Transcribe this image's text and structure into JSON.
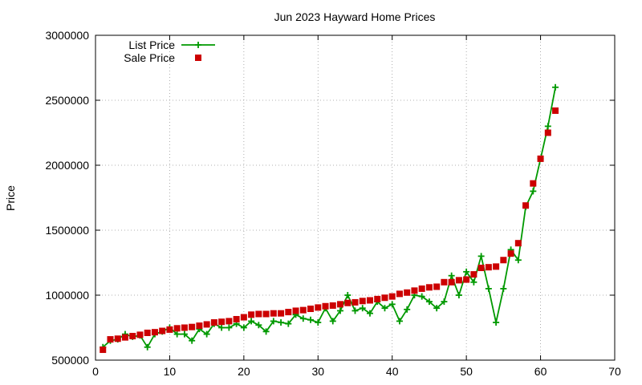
{
  "chart_data": {
    "type": "line",
    "title": "Jun 2023 Hayward Home Prices",
    "xlabel": "",
    "ylabel": "Price",
    "xlim": [
      0,
      70
    ],
    "ylim": [
      500000,
      3000000
    ],
    "x_ticks": [
      0,
      10,
      20,
      30,
      40,
      50,
      60,
      70
    ],
    "y_ticks": [
      500000,
      1000000,
      1500000,
      2000000,
      2500000,
      3000000
    ],
    "grid": true,
    "legend_position": "top-left",
    "series": [
      {
        "name": "List Price",
        "style": "line-plus",
        "color": "#009900",
        "x": [
          1,
          2,
          3,
          4,
          5,
          6,
          7,
          8,
          9,
          10,
          11,
          12,
          13,
          14,
          15,
          16,
          17,
          18,
          19,
          20,
          21,
          22,
          23,
          24,
          25,
          26,
          27,
          28,
          29,
          30,
          31,
          32,
          33,
          34,
          35,
          36,
          37,
          38,
          39,
          40,
          41,
          42,
          43,
          44,
          45,
          46,
          47,
          48,
          49,
          50,
          51,
          52,
          53,
          54,
          55,
          56,
          57,
          58,
          59,
          60,
          61,
          62
        ],
        "y": [
          600000,
          650000,
          660000,
          700000,
          680000,
          690000,
          600000,
          700000,
          720000,
          750000,
          700000,
          700000,
          650000,
          740000,
          700000,
          780000,
          750000,
          750000,
          780000,
          750000,
          800000,
          770000,
          720000,
          800000,
          790000,
          780000,
          850000,
          820000,
          810000,
          790000,
          900000,
          800000,
          880000,
          1000000,
          880000,
          900000,
          860000,
          950000,
          900000,
          930000,
          800000,
          890000,
          1000000,
          990000,
          950000,
          900000,
          950000,
          1150000,
          1000000,
          1180000,
          1100000,
          1300000,
          1050000,
          790000,
          1050000,
          1350000,
          1270000,
          1680000,
          1800000,
          2050000,
          2300000,
          2600000
        ]
      },
      {
        "name": "Sale Price",
        "style": "square-points",
        "color": "#cc0000",
        "x": [
          1,
          2,
          3,
          4,
          5,
          6,
          7,
          8,
          9,
          10,
          11,
          12,
          13,
          14,
          15,
          16,
          17,
          18,
          19,
          20,
          21,
          22,
          23,
          24,
          25,
          26,
          27,
          28,
          29,
          30,
          31,
          32,
          33,
          34,
          35,
          36,
          37,
          38,
          39,
          40,
          41,
          42,
          43,
          44,
          45,
          46,
          47,
          48,
          49,
          50,
          51,
          52,
          53,
          54,
          55,
          56,
          57,
          58,
          59,
          60,
          61,
          62
        ],
        "y": [
          580000,
          660000,
          665000,
          675000,
          685000,
          695000,
          710000,
          715000,
          725000,
          735000,
          745000,
          750000,
          755000,
          765000,
          775000,
          790000,
          795000,
          800000,
          815000,
          830000,
          850000,
          855000,
          855000,
          860000,
          860000,
          870000,
          880000,
          885000,
          895000,
          905000,
          915000,
          920000,
          930000,
          940000,
          945000,
          955000,
          960000,
          970000,
          980000,
          990000,
          1010000,
          1020000,
          1035000,
          1050000,
          1060000,
          1065000,
          1100000,
          1100000,
          1115000,
          1120000,
          1160000,
          1210000,
          1215000,
          1220000,
          1270000,
          1320000,
          1400000,
          1690000,
          1860000,
          2050000,
          2250000,
          2420000
        ]
      }
    ]
  }
}
